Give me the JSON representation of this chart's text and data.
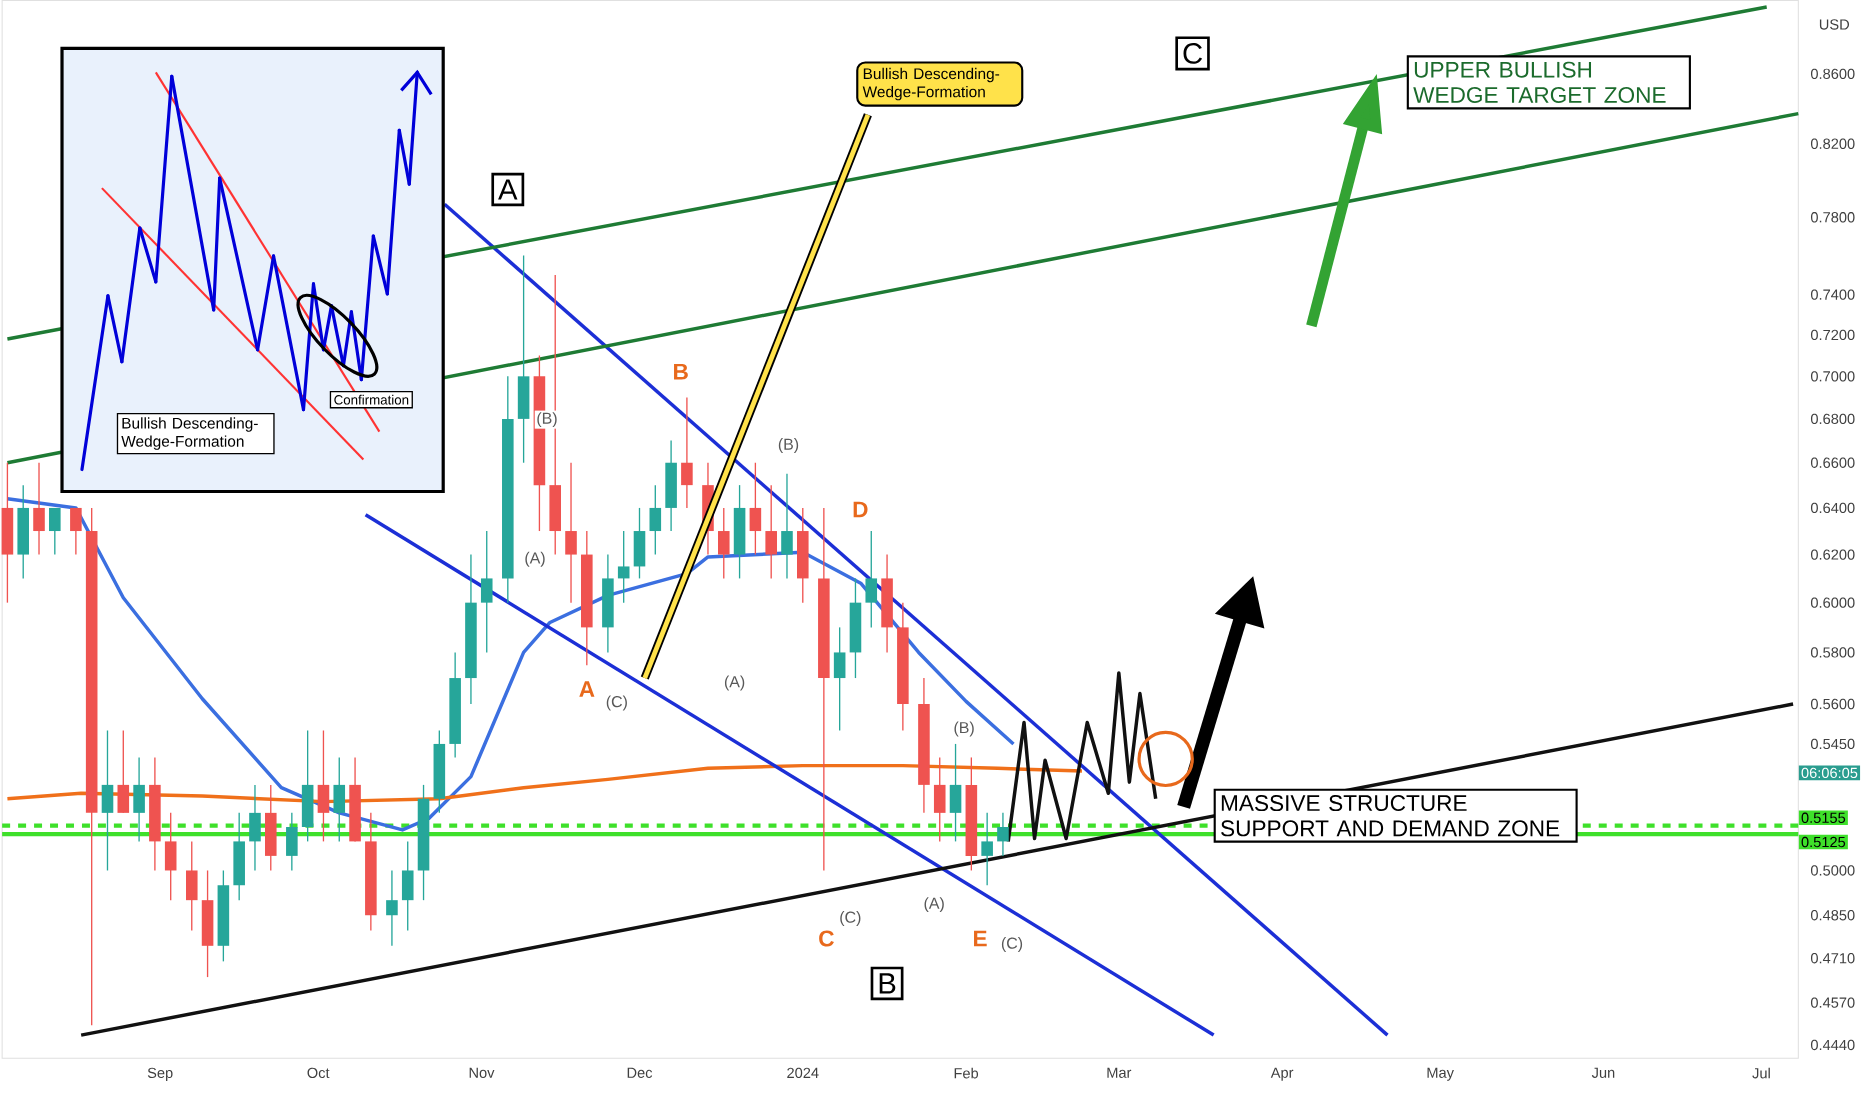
{
  "chart_data": {
    "type": "candlestick",
    "ylabel": "USD",
    "log": true,
    "xlim": [
      "2023-08-02",
      "2024-07-08"
    ],
    "ylim": [
      0.44,
      0.904
    ],
    "xticks": [
      {
        "value": "2023-09-01",
        "label": "Sep"
      },
      {
        "value": "2023-10-01",
        "label": "Oct"
      },
      {
        "value": "2023-11-01",
        "label": "Nov"
      },
      {
        "value": "2023-12-01",
        "label": "Dec"
      },
      {
        "value": "2024-01-01",
        "label": "2024"
      },
      {
        "value": "2024-02-01",
        "label": "Feb"
      },
      {
        "value": "2024-03-01",
        "label": "Mar"
      },
      {
        "value": "2024-04-01",
        "label": "Apr"
      },
      {
        "value": "2024-05-01",
        "label": "May"
      },
      {
        "value": "2024-06-01",
        "label": "Jun"
      },
      {
        "value": "2024-07-01",
        "label": "Jul"
      }
    ],
    "yticks": [
      {
        "value": 0.86,
        "label": "0.8600"
      },
      {
        "value": 0.82,
        "label": "0.8200"
      },
      {
        "value": 0.78,
        "label": "0.7800"
      },
      {
        "value": 0.74,
        "label": "0.7400"
      },
      {
        "value": 0.72,
        "label": "0.7200"
      },
      {
        "value": 0.7,
        "label": "0.7000"
      },
      {
        "value": 0.68,
        "label": "0.6800"
      },
      {
        "value": 0.66,
        "label": "0.6600"
      },
      {
        "value": 0.64,
        "label": "0.6400"
      },
      {
        "value": 0.62,
        "label": "0.6200"
      },
      {
        "value": 0.6,
        "label": "0.6000"
      },
      {
        "value": 0.58,
        "label": "0.5800"
      },
      {
        "value": 0.56,
        "label": "0.5600"
      },
      {
        "value": 0.545,
        "label": "0.5450"
      },
      {
        "value": 0.5,
        "label": "0.5000"
      },
      {
        "value": 0.485,
        "label": "0.4850"
      },
      {
        "value": 0.471,
        "label": "0.4710"
      },
      {
        "value": 0.457,
        "label": "0.4570"
      },
      {
        "value": 0.444,
        "label": "0.4440"
      }
    ],
    "series": [
      {
        "type": "line",
        "color": "#3b6fe0",
        "x": [
          "2023-08-03",
          "2023-08-16",
          "2023-08-25",
          "2023-09-09",
          "2023-09-24",
          "2023-10-05",
          "2023-10-17",
          "2023-10-22",
          "2023-10-30",
          "2023-11-09",
          "2023-11-14",
          "2023-11-25",
          "2023-12-10",
          "2023-12-14",
          "2024-01-01",
          "2024-01-12",
          "2024-01-23",
          "2024-02-01",
          "2024-02-10"
        ],
        "values": [
          0.644,
          0.64,
          0.602,
          0.562,
          0.529,
          0.52,
          0.514,
          0.518,
          0.533,
          0.58,
          0.592,
          0.603,
          0.612,
          0.619,
          0.621,
          0.608,
          0.58,
          0.561,
          0.545
        ]
      },
      {
        "type": "line",
        "color": "#f0701a",
        "x": [
          "2023-08-03",
          "2023-08-17",
          "2023-09-09",
          "2023-10-02",
          "2023-10-24",
          "2023-11-09",
          "2023-11-25",
          "2023-12-14",
          "2024-01-01",
          "2024-01-20",
          "2024-02-07",
          "2024-02-23"
        ],
        "values": [
          0.525,
          0.527,
          0.526,
          0.524,
          0.525,
          0.529,
          0.532,
          0.536,
          0.537,
          0.537,
          0.536,
          0.535
        ]
      },
      {
        "type": "line",
        "color": "#1c2fd6",
        "x": [
          "2023-10-25",
          "2024-04-21"
        ],
        "values": [
          0.787,
          0.447
        ]
      },
      {
        "type": "line",
        "color": "#1c2fd6",
        "x": [
          "2023-10-10",
          "2024-03-19"
        ],
        "values": [
          0.637,
          0.447
        ]
      },
      {
        "type": "line",
        "color": "#111111",
        "x": [
          "2023-08-17",
          "2024-07-07"
        ],
        "values": [
          0.447,
          0.56
        ]
      },
      {
        "type": "line",
        "color": "#1e7b34",
        "x": [
          "2023-08-03",
          "2024-07-02"
        ],
        "values": [
          0.718,
          0.9
        ]
      },
      {
        "type": "line",
        "color": "#1e7b34",
        "x": [
          "2023-08-03",
          "2024-07-08"
        ],
        "values": [
          0.66,
          0.837
        ]
      },
      {
        "type": "line",
        "color": "#111111",
        "x": [
          "2024-02-09",
          "2024-02-12",
          "2024-02-14",
          "2024-02-16",
          "2024-02-20",
          "2024-02-24",
          "2024-02-28",
          "2024-03-01",
          "2024-03-03",
          "2024-03-05",
          "2024-03-08"
        ],
        "values": [
          0.51,
          0.553,
          0.511,
          0.539,
          0.511,
          0.553,
          0.527,
          0.572,
          0.531,
          0.564,
          0.525
        ]
      },
      {
        "x": [
          "2023-08-03",
          "2023-08-06",
          "2023-08-09",
          "2023-08-12",
          "2023-08-16",
          "2023-08-19",
          "2023-08-22",
          "2023-08-25",
          "2023-08-28",
          "2023-08-31",
          "2023-09-03",
          "2023-09-07",
          "2023-09-10",
          "2023-09-13",
          "2023-09-16",
          "2023-09-19",
          "2023-09-22",
          "2023-09-26",
          "2023-09-29",
          "2023-10-02",
          "2023-10-05",
          "2023-10-08",
          "2023-10-11",
          "2023-10-15",
          "2023-10-18",
          "2023-10-21",
          "2023-10-24",
          "2023-10-27",
          "2023-10-30",
          "2023-11-02",
          "2023-11-06",
          "2023-11-09",
          "2023-11-12",
          "2023-11-15",
          "2023-11-18",
          "2023-11-21",
          "2023-11-25",
          "2023-11-28",
          "2023-12-01",
          "2023-12-04",
          "2023-12-07",
          "2023-12-10",
          "2023-12-14",
          "2023-12-17",
          "2023-12-20",
          "2023-12-23",
          "2023-12-26",
          "2023-12-29",
          "2024-01-01",
          "2024-01-05",
          "2024-01-08",
          "2024-01-11",
          "2024-01-14",
          "2024-01-17",
          "2024-01-20",
          "2024-01-24",
          "2024-01-27",
          "2024-01-30",
          "2024-02-02",
          "2024-02-05",
          "2024-02-08"
        ],
        "ohlc": [
          [
            0.64,
            0.66,
            0.6,
            0.62
          ],
          [
            0.62,
            0.65,
            0.61,
            0.64
          ],
          [
            0.64,
            0.66,
            0.62,
            0.63
          ],
          [
            0.63,
            0.64,
            0.62,
            0.64
          ],
          [
            0.64,
            0.64,
            0.62,
            0.63
          ],
          [
            0.63,
            0.64,
            0.45,
            0.52
          ],
          [
            0.52,
            0.55,
            0.5,
            0.53
          ],
          [
            0.53,
            0.55,
            0.52,
            0.52
          ],
          [
            0.52,
            0.54,
            0.51,
            0.53
          ],
          [
            0.53,
            0.54,
            0.5,
            0.51
          ],
          [
            0.51,
            0.52,
            0.49,
            0.5
          ],
          [
            0.5,
            0.51,
            0.48,
            0.49
          ],
          [
            0.49,
            0.5,
            0.465,
            0.475
          ],
          [
            0.475,
            0.5,
            0.47,
            0.495
          ],
          [
            0.495,
            0.52,
            0.49,
            0.51
          ],
          [
            0.51,
            0.53,
            0.5,
            0.52
          ],
          [
            0.52,
            0.53,
            0.5,
            0.505
          ],
          [
            0.505,
            0.52,
            0.5,
            0.515
          ],
          [
            0.515,
            0.55,
            0.51,
            0.53
          ],
          [
            0.53,
            0.55,
            0.51,
            0.52
          ],
          [
            0.52,
            0.54,
            0.51,
            0.53
          ],
          [
            0.53,
            0.54,
            0.51,
            0.51
          ],
          [
            0.51,
            0.52,
            0.48,
            0.485
          ],
          [
            0.485,
            0.5,
            0.475,
            0.49
          ],
          [
            0.49,
            0.51,
            0.48,
            0.5
          ],
          [
            0.5,
            0.53,
            0.49,
            0.525
          ],
          [
            0.525,
            0.55,
            0.52,
            0.545
          ],
          [
            0.545,
            0.58,
            0.54,
            0.57
          ],
          [
            0.57,
            0.62,
            0.56,
            0.6
          ],
          [
            0.6,
            0.63,
            0.58,
            0.61
          ],
          [
            0.61,
            0.7,
            0.6,
            0.68
          ],
          [
            0.68,
            0.76,
            0.66,
            0.7
          ],
          [
            0.7,
            0.71,
            0.63,
            0.65
          ],
          [
            0.65,
            0.75,
            0.62,
            0.63
          ],
          [
            0.63,
            0.66,
            0.6,
            0.62
          ],
          [
            0.62,
            0.63,
            0.575,
            0.59
          ],
          [
            0.59,
            0.62,
            0.58,
            0.61
          ],
          [
            0.61,
            0.63,
            0.6,
            0.615
          ],
          [
            0.615,
            0.64,
            0.61,
            0.63
          ],
          [
            0.63,
            0.65,
            0.62,
            0.64
          ],
          [
            0.64,
            0.67,
            0.63,
            0.66
          ],
          [
            0.66,
            0.69,
            0.64,
            0.65
          ],
          [
            0.65,
            0.66,
            0.62,
            0.63
          ],
          [
            0.63,
            0.64,
            0.61,
            0.62
          ],
          [
            0.62,
            0.65,
            0.61,
            0.64
          ],
          [
            0.64,
            0.66,
            0.62,
            0.63
          ],
          [
            0.63,
            0.65,
            0.61,
            0.62
          ],
          [
            0.62,
            0.655,
            0.61,
            0.63
          ],
          [
            0.63,
            0.64,
            0.6,
            0.61
          ],
          [
            0.61,
            0.64,
            0.5,
            0.57
          ],
          [
            0.57,
            0.59,
            0.55,
            0.58
          ],
          [
            0.58,
            0.61,
            0.57,
            0.6
          ],
          [
            0.6,
            0.63,
            0.59,
            0.61
          ],
          [
            0.61,
            0.62,
            0.58,
            0.59
          ],
          [
            0.59,
            0.6,
            0.55,
            0.56
          ],
          [
            0.56,
            0.57,
            0.52,
            0.53
          ],
          [
            0.53,
            0.54,
            0.51,
            0.52
          ],
          [
            0.52,
            0.545,
            0.51,
            0.53
          ],
          [
            0.53,
            0.54,
            0.5,
            0.505
          ],
          [
            0.505,
            0.52,
            0.495,
            0.51
          ],
          [
            0.51,
            0.52,
            0.505,
            0.515
          ]
        ],
        "colors": [
          "#ef5350",
          "#26a69a",
          "#ef5350",
          "#26a69a",
          "#ef5350",
          "#ef5350",
          "#26a69a",
          "#ef5350",
          "#26a69a",
          "#ef5350",
          "#ef5350",
          "#ef5350",
          "#ef5350",
          "#26a69a",
          "#26a69a",
          "#26a69a",
          "#ef5350",
          "#26a69a",
          "#26a69a",
          "#ef5350",
          "#26a69a",
          "#ef5350",
          "#ef5350",
          "#26a69a",
          "#26a69a",
          "#26a69a",
          "#26a69a",
          "#26a69a",
          "#26a69a",
          "#26a69a",
          "#26a69a",
          "#26a69a",
          "#ef5350",
          "#ef5350",
          "#ef5350",
          "#ef5350",
          "#26a69a",
          "#26a69a",
          "#26a69a",
          "#26a69a",
          "#26a69a",
          "#ef5350",
          "#ef5350",
          "#ef5350",
          "#26a69a",
          "#ef5350",
          "#ef5350",
          "#26a69a",
          "#ef5350",
          "#ef5350",
          "#26a69a",
          "#26a69a",
          "#26a69a",
          "#ef5350",
          "#ef5350",
          "#ef5350",
          "#ef5350",
          "#26a69a",
          "#ef5350",
          "#26a69a",
          "#26a69a"
        ]
      }
    ],
    "ref_lines": [
      {
        "axis": "y",
        "value": 0.5155,
        "label": "0.5155",
        "color": "#3ee02a",
        "line_style": "dashed"
      },
      {
        "axis": "y",
        "value": 0.5125,
        "label": "0.5125",
        "color": "#3ee02a"
      }
    ],
    "annotations": [
      {
        "text": "Bullish Descending-Wedge-Formation",
        "x": "2023-12-02",
        "y": 0.57
      },
      {
        "text": "A",
        "x": "2023-11-06",
        "y": 0.795
      },
      {
        "text": "B",
        "x": "2024-01-17",
        "y": 0.463
      },
      {
        "text": "C",
        "x": "2024-03-15",
        "y": 0.872
      },
      {
        "text": "MASSIVE STRUCTURE SUPPORT AND DEMAND ZONE",
        "x": "2024-03-19",
        "y": 0.519
      },
      "UPPER BULLISH WEDGE TARGET ZONE",
      "A",
      "B",
      "C",
      "D",
      "E",
      "(B)",
      "(A)",
      "(C)",
      "(A)",
      "(B)",
      "(C)",
      "(A)",
      "(B)",
      "(C)",
      "06:06:05",
      "Bullish Descending-Wedge-Formation",
      "Confirmation"
    ]
  }
}
